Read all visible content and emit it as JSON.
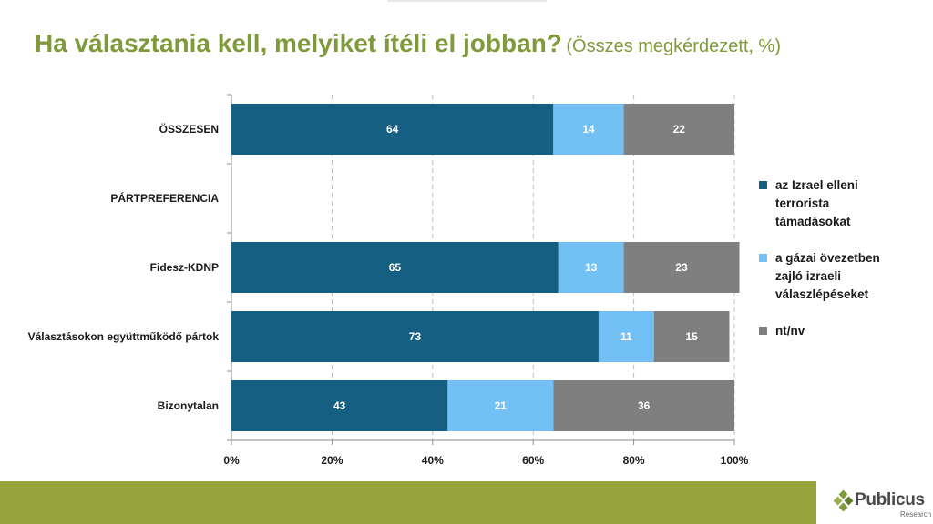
{
  "title": {
    "main": "Ha választania kell, melyiket ítéli el jobban?",
    "sub": "(Összes megkérdezett, %)"
  },
  "colors": {
    "title": "#7f9a3a",
    "footer": "#97a43e",
    "series": [
      "#155f82",
      "#73c1f4",
      "#7f7f7f"
    ],
    "logo_green": "#7f9a3a"
  },
  "chart_data": {
    "type": "bar",
    "orientation": "horizontal",
    "stacked": true,
    "categories": [
      "ÖSSZESEN",
      "PÁRTPREFERENCIA",
      "Fidesz-KDNP",
      "Választásokon együttműködő pártok",
      "Bizonytalan"
    ],
    "series": [
      {
        "name": "az Izrael elleni terrorista támadásokat",
        "values": [
          64,
          null,
          65,
          73,
          43
        ]
      },
      {
        "name": "a gázai övezetben zajló izraeli válaszlépéseket",
        "values": [
          14,
          null,
          13,
          11,
          21
        ]
      },
      {
        "name": "nt/nv",
        "values": [
          22,
          null,
          23,
          15,
          36
        ]
      }
    ],
    "xlim": [
      0,
      100
    ],
    "xticks": [
      "0%",
      "20%",
      "40%",
      "60%",
      "80%",
      "100%"
    ],
    "grid": true,
    "legend_position": "right"
  },
  "legend": [
    {
      "lines": [
        "az Izrael elleni",
        "terrorista",
        "támadásokat"
      ]
    },
    {
      "lines": [
        "a gázai övezetben",
        "zajló izraeli",
        "válaszlépéseket"
      ]
    },
    {
      "lines": [
        "nt/nv"
      ]
    }
  ],
  "logo": {
    "name": "Publicus",
    "sub": "Research"
  }
}
